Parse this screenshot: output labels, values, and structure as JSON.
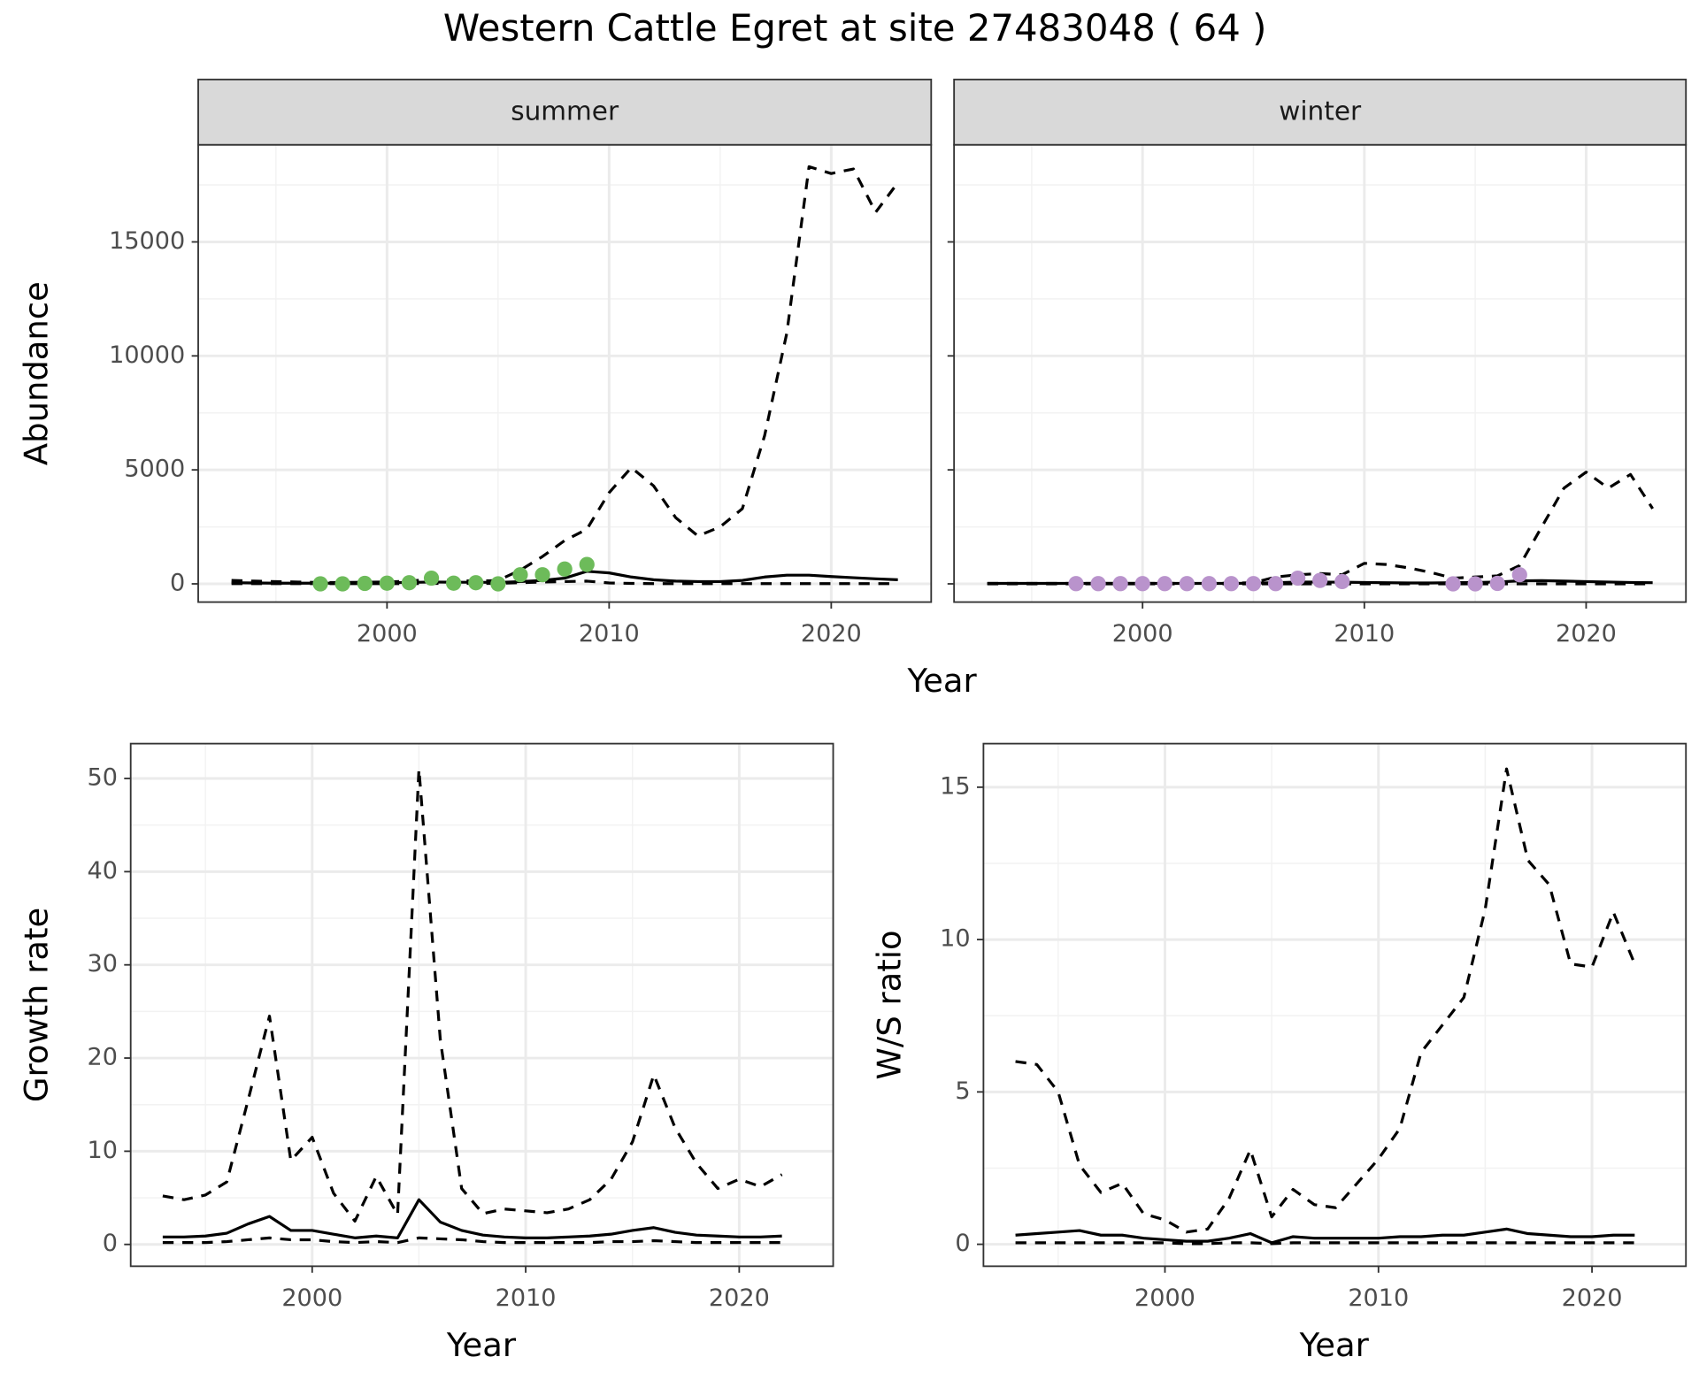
{
  "title": "Western Cattle Egret at site 27483048 ( 64 )",
  "chart_data": [
    {
      "type": "line",
      "facet": "summer",
      "ylabel": "Abundance",
      "xlabel": "Year",
      "ytick_labels": true,
      "xlim": [
        1991.5,
        2024.5
      ],
      "ylim": [
        -800,
        19260
      ],
      "xticks": [
        2000,
        2010,
        2020
      ],
      "yticks": [
        0,
        5000,
        10000,
        15000
      ],
      "grid": true,
      "x": [
        1993,
        1994,
        1995,
        1996,
        1997,
        1998,
        1999,
        2000,
        2001,
        2002,
        2003,
        2004,
        2005,
        2006,
        2007,
        2008,
        2009,
        2010,
        2011,
        2012,
        2013,
        2014,
        2015,
        2016,
        2017,
        2018,
        2019,
        2020,
        2021,
        2022,
        2023
      ],
      "series": [
        {
          "kind": "line",
          "dash": false,
          "color": "#000000",
          "values": [
            50,
            40,
            30,
            30,
            30,
            30,
            40,
            50,
            60,
            80,
            70,
            70,
            60,
            100,
            150,
            250,
            550,
            480,
            300,
            180,
            120,
            100,
            100,
            150,
            300,
            380,
            380,
            320,
            270,
            220,
            180
          ]
        },
        {
          "kind": "line",
          "dash": true,
          "color": "#000000",
          "values": [
            150,
            120,
            100,
            80,
            60,
            60,
            70,
            80,
            120,
            200,
            150,
            120,
            150,
            600,
            1200,
            1900,
            2400,
            4000,
            5100,
            4300,
            2900,
            2100,
            2500,
            3300,
            6500,
            11000,
            18300,
            18000,
            18200,
            16300,
            17600
          ]
        },
        {
          "kind": "line",
          "dash": true,
          "color": "#000000",
          "values": [
            10,
            10,
            10,
            10,
            10,
            10,
            10,
            10,
            10,
            20,
            20,
            20,
            20,
            50,
            80,
            100,
            120,
            40,
            20,
            10,
            10,
            10,
            10,
            10,
            10,
            10,
            10,
            10,
            10,
            10,
            10
          ]
        },
        {
          "kind": "points",
          "color": "#6dbb5a",
          "x": [
            1997,
            1998,
            1999,
            2000,
            2001,
            2002,
            2003,
            2004,
            2005,
            2006,
            2007,
            2008,
            2009
          ],
          "values": [
            0,
            0,
            20,
            30,
            50,
            250,
            30,
            50,
            0,
            400,
            400,
            650,
            850
          ]
        }
      ]
    },
    {
      "type": "line",
      "facet": "winter",
      "ytick_labels": false,
      "xlim": [
        1991.5,
        2024.5
      ],
      "ylim": [
        -800,
        19260
      ],
      "xticks": [
        2000,
        2010,
        2020
      ],
      "yticks": [
        0,
        5000,
        10000,
        15000
      ],
      "grid": true,
      "x": [
        1993,
        1994,
        1995,
        1996,
        1997,
        1998,
        1999,
        2000,
        2001,
        2002,
        2003,
        2004,
        2005,
        2006,
        2007,
        2008,
        2009,
        2010,
        2011,
        2012,
        2013,
        2014,
        2015,
        2016,
        2017,
        2018,
        2019,
        2020,
        2021,
        2022,
        2023
      ],
      "series": [
        {
          "kind": "line",
          "dash": false,
          "color": "#000000",
          "values": [
            20,
            20,
            20,
            20,
            20,
            20,
            20,
            20,
            20,
            20,
            20,
            20,
            30,
            50,
            80,
            80,
            70,
            60,
            50,
            40,
            40,
            50,
            60,
            80,
            130,
            140,
            120,
            100,
            80,
            60,
            50
          ]
        },
        {
          "kind": "line",
          "dash": true,
          "color": "#000000",
          "values": [
            20,
            20,
            20,
            20,
            20,
            20,
            20,
            20,
            20,
            20,
            20,
            30,
            50,
            300,
            400,
            450,
            400,
            900,
            850,
            700,
            500,
            250,
            300,
            350,
            800,
            2500,
            4200,
            4900,
            4200,
            4800,
            3300
          ]
        },
        {
          "kind": "line",
          "dash": true,
          "color": "#000000",
          "values": [
            0,
            0,
            0,
            0,
            0,
            0,
            0,
            0,
            0,
            0,
            0,
            0,
            0,
            0,
            0,
            0,
            0,
            0,
            0,
            0,
            0,
            0,
            0,
            0,
            0,
            0,
            0,
            0,
            0,
            0,
            0
          ]
        },
        {
          "kind": "points",
          "color": "#b993cc",
          "x": [
            1997,
            1998,
            1999,
            2000,
            2001,
            2002,
            2003,
            2004,
            2005,
            2006,
            2007,
            2008,
            2009,
            2014,
            2015,
            2016,
            2017
          ],
          "values": [
            10,
            10,
            10,
            10,
            10,
            10,
            10,
            10,
            10,
            10,
            250,
            150,
            100,
            0,
            0,
            20,
            400
          ]
        }
      ]
    },
    {
      "type": "line",
      "ylabel": "Growth rate",
      "xlabel": "Year",
      "ytick_labels": true,
      "xlim": [
        1991.5,
        2024.4
      ],
      "ylim": [
        -2.34,
        53.74
      ],
      "xticks": [
        2000,
        2010,
        2020
      ],
      "yticks": [
        0,
        10,
        20,
        30,
        40,
        50
      ],
      "grid": true,
      "x": [
        1993,
        1994,
        1995,
        1996,
        1997,
        1998,
        1999,
        2000,
        2001,
        2002,
        2003,
        2004,
        2005,
        2006,
        2007,
        2008,
        2009,
        2010,
        2011,
        2012,
        2013,
        2014,
        2015,
        2016,
        2017,
        2018,
        2019,
        2020,
        2021,
        2022
      ],
      "series": [
        {
          "kind": "line",
          "dash": false,
          "color": "#000000",
          "values": [
            0.8,
            0.8,
            0.9,
            1.2,
            2.2,
            3.0,
            1.5,
            1.5,
            1.1,
            0.7,
            0.9,
            0.7,
            4.8,
            2.4,
            1.5,
            1.0,
            0.8,
            0.7,
            0.7,
            0.8,
            0.9,
            1.1,
            1.5,
            1.8,
            1.3,
            1.0,
            0.9,
            0.8,
            0.8,
            0.9
          ]
        },
        {
          "kind": "line",
          "dash": true,
          "color": "#000000",
          "values": [
            5.2,
            4.8,
            5.3,
            6.7,
            15.5,
            24.5,
            9,
            11.5,
            5.5,
            2.5,
            7.3,
            3.2,
            51,
            22,
            6,
            3.3,
            3.8,
            3.6,
            3.4,
            3.8,
            4.8,
            7,
            11,
            18.2,
            12.5,
            8.7,
            6,
            7,
            6.2,
            7.5
          ]
        },
        {
          "kind": "line",
          "dash": true,
          "color": "#000000",
          "values": [
            0.2,
            0.2,
            0.2,
            0.3,
            0.5,
            0.7,
            0.5,
            0.5,
            0.3,
            0.2,
            0.3,
            0.2,
            0.7,
            0.6,
            0.5,
            0.3,
            0.2,
            0.2,
            0.2,
            0.2,
            0.2,
            0.3,
            0.3,
            0.4,
            0.3,
            0.2,
            0.2,
            0.2,
            0.2,
            0.2
          ]
        }
      ]
    },
    {
      "type": "line",
      "ylabel": "W/S ratio",
      "xlabel": "Year",
      "ytick_labels": true,
      "xlim": [
        1991.5,
        2024.4
      ],
      "ylim": [
        -0.72,
        16.43
      ],
      "xticks": [
        2000,
        2010,
        2020
      ],
      "yticks": [
        0,
        5,
        10,
        15
      ],
      "grid": true,
      "x": [
        1993,
        1994,
        1995,
        1996,
        1997,
        1998,
        1999,
        2000,
        2001,
        2002,
        2003,
        2004,
        2005,
        2006,
        2007,
        2008,
        2009,
        2010,
        2011,
        2012,
        2013,
        2014,
        2015,
        2016,
        2017,
        2018,
        2019,
        2020,
        2021,
        2022
      ],
      "series": [
        {
          "kind": "line",
          "dash": false,
          "color": "#000000",
          "values": [
            0.3,
            0.35,
            0.4,
            0.45,
            0.3,
            0.3,
            0.2,
            0.15,
            0.1,
            0.1,
            0.2,
            0.35,
            0.05,
            0.25,
            0.2,
            0.2,
            0.2,
            0.2,
            0.25,
            0.25,
            0.3,
            0.3,
            0.4,
            0.5,
            0.35,
            0.3,
            0.25,
            0.25,
            0.3,
            0.3
          ]
        },
        {
          "kind": "line",
          "dash": true,
          "color": "#000000",
          "values": [
            6.0,
            5.9,
            5.0,
            2.6,
            1.7,
            2.0,
            1.0,
            0.8,
            0.4,
            0.5,
            1.5,
            3.1,
            0.9,
            1.8,
            1.3,
            1.2,
            2.0,
            2.8,
            3.8,
            6.3,
            7.2,
            8.1,
            11,
            15.6,
            12.6,
            11.8,
            9.2,
            9.1,
            10.9,
            9.2
          ]
        },
        {
          "kind": "line",
          "dash": true,
          "color": "#000000",
          "values": [
            0.05,
            0.05,
            0.05,
            0.05,
            0.05,
            0.05,
            0.05,
            0.05,
            0.02,
            0.02,
            0.05,
            0.05,
            0.02,
            0.05,
            0.05,
            0.05,
            0.05,
            0.05,
            0.05,
            0.05,
            0.05,
            0.05,
            0.05,
            0.05,
            0.05,
            0.05,
            0.05,
            0.05,
            0.05,
            0.05
          ]
        }
      ]
    }
  ]
}
